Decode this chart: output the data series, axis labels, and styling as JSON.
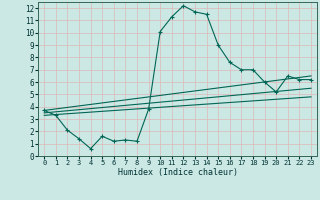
{
  "xlabel": "Humidex (Indice chaleur)",
  "background_color": "#cce8e4",
  "grid_color": "#b0d8d0",
  "line_color": "#006655",
  "xlim": [
    -0.5,
    23.5
  ],
  "ylim": [
    0,
    12.5
  ],
  "xticks": [
    0,
    1,
    2,
    3,
    4,
    5,
    6,
    7,
    8,
    9,
    10,
    11,
    12,
    13,
    14,
    15,
    16,
    17,
    18,
    19,
    20,
    21,
    22,
    23
  ],
  "yticks": [
    0,
    1,
    2,
    3,
    4,
    5,
    6,
    7,
    8,
    9,
    10,
    11,
    12
  ],
  "line1_x": [
    0,
    1,
    2,
    3,
    4,
    5,
    6,
    7,
    8,
    9,
    10,
    11,
    12,
    13,
    14,
    15,
    16,
    17,
    18,
    19,
    20,
    21,
    22,
    23
  ],
  "line1_y": [
    3.7,
    3.3,
    2.1,
    1.4,
    0.6,
    1.6,
    1.2,
    1.3,
    1.2,
    3.8,
    10.1,
    11.3,
    12.2,
    11.7,
    11.5,
    9.0,
    7.6,
    7.0,
    7.0,
    6.0,
    5.2,
    6.5,
    6.2,
    6.2
  ],
  "line2_x": [
    0,
    23
  ],
  "line2_y": [
    3.7,
    6.5
  ],
  "line3_x": [
    0,
    23
  ],
  "line3_y": [
    3.5,
    5.5
  ],
  "line4_x": [
    0,
    23
  ],
  "line4_y": [
    3.3,
    4.8
  ]
}
